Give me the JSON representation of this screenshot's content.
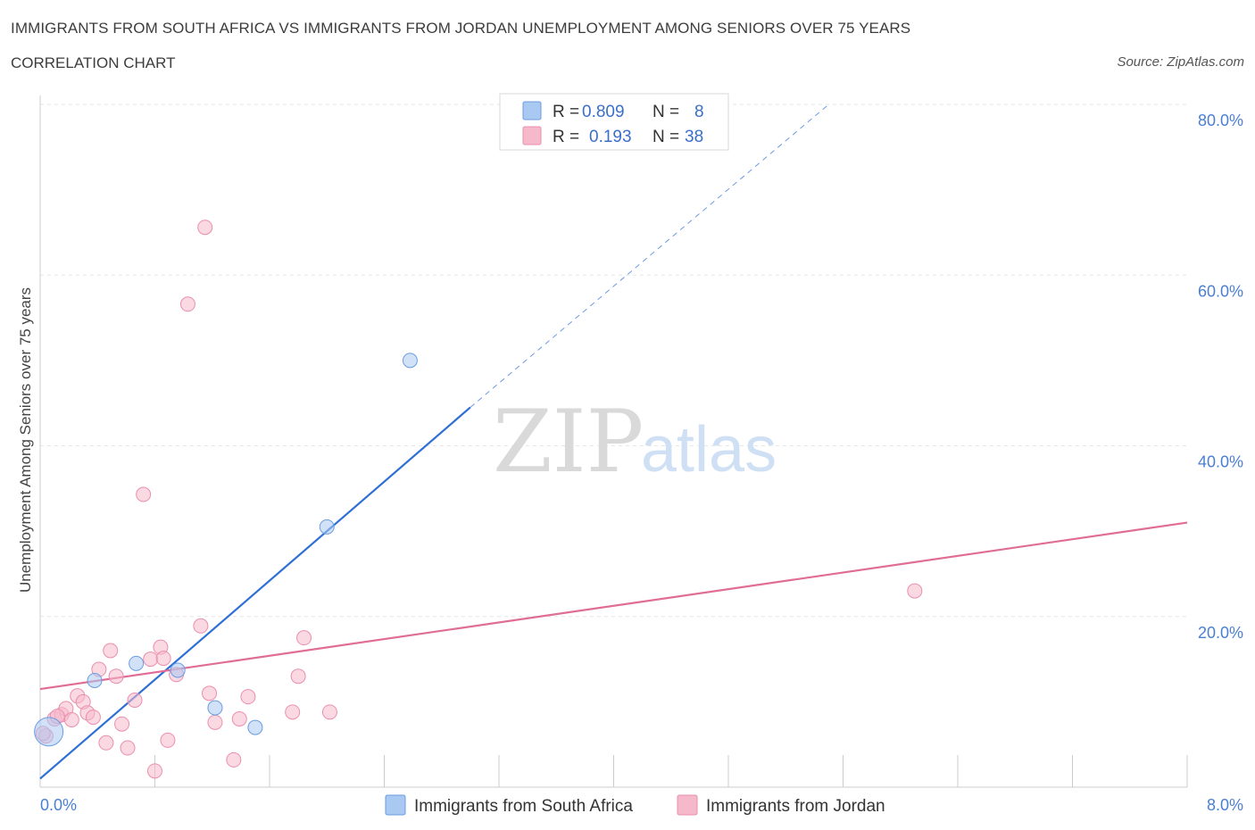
{
  "header": {
    "title": "IMMIGRANTS FROM SOUTH AFRICA VS IMMIGRANTS FROM JORDAN UNEMPLOYMENT AMONG SENIORS OVER 75 YEARS",
    "subtitle": "CORRELATION CHART",
    "source": "Source: ZipAtlas.com"
  },
  "watermark": {
    "zip": "ZIP",
    "atlas": "atlas"
  },
  "legend": {
    "rows": [
      {
        "r_label": "R =",
        "r_value": "0.809",
        "n_label": "N =",
        "n_value": "8",
        "color": "#a9c8f2"
      },
      {
        "r_label": "R =",
        "r_value": "0.193",
        "n_label": "N =",
        "n_value": "38",
        "color": "#f6b9cc"
      }
    ]
  },
  "chart_data": {
    "type": "scatter",
    "title": "IMMIGRANTS FROM SOUTH AFRICA VS IMMIGRANTS FROM JORDAN UNEMPLOYMENT AMONG SENIORS OVER 75 YEARS",
    "xlabel": "",
    "ylabel": "Unemployment Among Seniors over 75 years",
    "xlim": [
      0,
      8
    ],
    "ylim": [
      0,
      80
    ],
    "x_tick_labels": [
      "0.0%",
      "8.0%"
    ],
    "y_ticks": [
      20,
      40,
      60,
      80
    ],
    "y_tick_labels": [
      "20.0%",
      "40.0%",
      "60.0%",
      "80.0%"
    ],
    "grid": true,
    "series": [
      {
        "name": "Immigrants from South Africa",
        "color": "#a9c8f2",
        "stroke": "#6a9de0",
        "line_color": "#2e6fd6",
        "points": [
          {
            "x": 0.06,
            "y": 6.5,
            "big": true
          },
          {
            "x": 0.38,
            "y": 12.5
          },
          {
            "x": 0.67,
            "y": 14.5
          },
          {
            "x": 0.96,
            "y": 13.7
          },
          {
            "x": 1.22,
            "y": 9.3
          },
          {
            "x": 1.5,
            "y": 7.0
          },
          {
            "x": 2.0,
            "y": 30.5
          },
          {
            "x": 2.58,
            "y": 50.0
          }
        ],
        "trend": {
          "x0": 0.0,
          "y0": 1.0,
          "x1": 3.0,
          "y1": 44.5,
          "dash_x1": 5.5,
          "dash_y1": 80.0
        }
      },
      {
        "name": "Immigrants from Jordan",
        "color": "#f6b9cc",
        "stroke": "#ea8fad",
        "line_color": "#e06d96",
        "points": [
          {
            "x": 0.04,
            "y": 6.0
          },
          {
            "x": 0.1,
            "y": 8.0
          },
          {
            "x": 0.15,
            "y": 8.5
          },
          {
            "x": 0.18,
            "y": 9.2
          },
          {
            "x": 0.22,
            "y": 7.9
          },
          {
            "x": 0.26,
            "y": 10.7
          },
          {
            "x": 0.3,
            "y": 10.0
          },
          {
            "x": 0.33,
            "y": 8.7
          },
          {
            "x": 0.37,
            "y": 8.2
          },
          {
            "x": 0.41,
            "y": 13.8
          },
          {
            "x": 0.46,
            "y": 5.2
          },
          {
            "x": 0.49,
            "y": 16.0
          },
          {
            "x": 0.53,
            "y": 13.0
          },
          {
            "x": 0.57,
            "y": 7.4
          },
          {
            "x": 0.61,
            "y": 4.6
          },
          {
            "x": 0.66,
            "y": 10.2
          },
          {
            "x": 0.72,
            "y": 34.3
          },
          {
            "x": 0.77,
            "y": 15.0
          },
          {
            "x": 0.8,
            "y": 1.9
          },
          {
            "x": 0.84,
            "y": 16.4
          },
          {
            "x": 0.86,
            "y": 15.1
          },
          {
            "x": 0.89,
            "y": 5.5
          },
          {
            "x": 0.95,
            "y": 13.2
          },
          {
            "x": 1.03,
            "y": 56.6
          },
          {
            "x": 1.12,
            "y": 18.9
          },
          {
            "x": 1.15,
            "y": 65.6
          },
          {
            "x": 1.18,
            "y": 11.0
          },
          {
            "x": 1.22,
            "y": 7.6
          },
          {
            "x": 1.35,
            "y": 3.2
          },
          {
            "x": 1.39,
            "y": 8.0
          },
          {
            "x": 1.45,
            "y": 10.6
          },
          {
            "x": 1.76,
            "y": 8.8
          },
          {
            "x": 1.8,
            "y": 13.0
          },
          {
            "x": 1.84,
            "y": 17.5
          },
          {
            "x": 2.02,
            "y": 8.8
          },
          {
            "x": 6.1,
            "y": 23.0
          },
          {
            "x": 0.02,
            "y": 6.3
          },
          {
            "x": 0.12,
            "y": 8.3
          }
        ],
        "trend": {
          "x0": 0.0,
          "y0": 11.5,
          "x1": 8.0,
          "y1": 31.0
        }
      }
    ]
  }
}
